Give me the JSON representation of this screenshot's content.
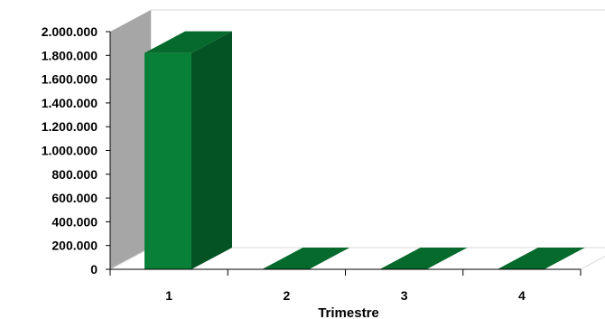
{
  "chart_data": {
    "type": "bar",
    "categories": [
      "1",
      "2",
      "3",
      "4"
    ],
    "values": [
      1820000,
      0,
      0,
      0
    ],
    "xlabel": "Trimestre",
    "ylabel": "",
    "ylim": [
      0,
      2000000
    ],
    "y_ticks": [
      {
        "value": 0,
        "label": "0"
      },
      {
        "value": 200000,
        "label": "200.000"
      },
      {
        "value": 400000,
        "label": "400.000"
      },
      {
        "value": 600000,
        "label": "600.000"
      },
      {
        "value": 800000,
        "label": "800.000"
      },
      {
        "value": 1000000,
        "label": "1.000.000"
      },
      {
        "value": 1200000,
        "label": "1.200.000"
      },
      {
        "value": 1400000,
        "label": "1.400.000"
      },
      {
        "value": 1600000,
        "label": "1.600.000"
      },
      {
        "value": 1800000,
        "label": "1.800.000"
      },
      {
        "value": 2000000,
        "label": "2.000.000"
      }
    ],
    "grid": false,
    "legend": "none",
    "three_d": true,
    "colors": {
      "bar_front": "#088038",
      "bar_side": "#045324",
      "bar_top": "#066a2c",
      "back_wall": "#ffffff",
      "side_wall": "#a6a6a6",
      "floor": "#ffffff"
    }
  }
}
